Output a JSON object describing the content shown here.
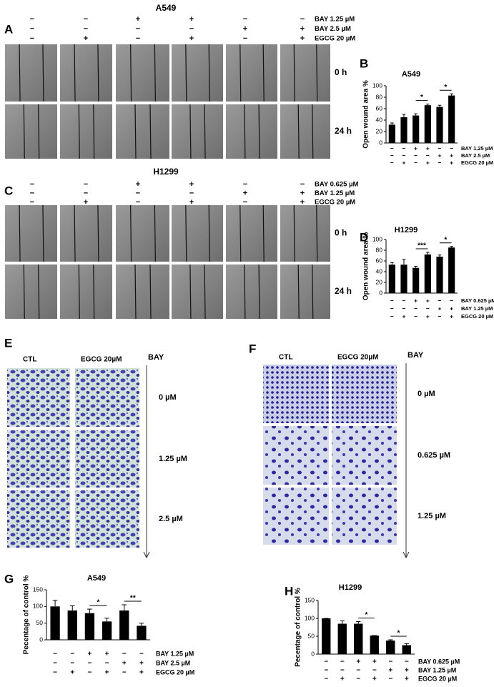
{
  "panels": {
    "wound_a549": {
      "label": "A",
      "title": "A549",
      "times": [
        "0 h",
        "24 h"
      ],
      "conditions": [
        {
          "name": "BAY 1.25 µM",
          "signs": [
            "−",
            "−",
            "+",
            "+",
            "−",
            "−"
          ]
        },
        {
          "name": "BAY 2.5 µM",
          "signs": [
            "−",
            "−",
            "−",
            "−",
            "+",
            "+"
          ]
        },
        {
          "name": "EGCG 20 µM",
          "signs": [
            "−",
            "+",
            "−",
            "+",
            "−",
            "+"
          ]
        }
      ]
    },
    "wound_h1299": {
      "label": "C",
      "title": "H1299",
      "times": [
        "0 h",
        "24 h"
      ],
      "conditions": [
        {
          "name": "BAY 0.625 µM",
          "signs": [
            "−",
            "−",
            "+",
            "+",
            "−",
            "−"
          ]
        },
        {
          "name": "BAY 1.25 µM",
          "signs": [
            "−",
            "−",
            "−",
            "−",
            "+",
            "+"
          ]
        },
        {
          "name": "EGCG 20 µM",
          "signs": [
            "−",
            "+",
            "−",
            "+",
            "−",
            "+"
          ]
        }
      ]
    },
    "transwell_a549": {
      "label": "E",
      "columns": [
        "CTL",
        "EGCG 20µM"
      ],
      "axis_label": "BAY",
      "doses": [
        "0 µM",
        "1.25 µM",
        "2.5 µM"
      ]
    },
    "transwell_h1299": {
      "label": "F",
      "columns": [
        "CTL",
        "EGCG 20µM"
      ],
      "axis_label": "BAY",
      "doses": [
        "0 µM",
        "0.625 µM",
        "1.25 µM"
      ]
    }
  },
  "chart_data": [
    {
      "type": "bar",
      "label": "B",
      "title": "A549",
      "y_label": "Open wound area %",
      "color": "#000000",
      "values": [
        32,
        45,
        48,
        66,
        63,
        83
      ],
      "errors": [
        3,
        5,
        3,
        2,
        3,
        3
      ],
      "significance": [
        null,
        null,
        null,
        "*",
        null,
        "*"
      ],
      "ylim": [
        0,
        100
      ],
      "yticks": [
        0,
        20,
        40,
        60,
        80,
        100
      ],
      "conditions": [
        {
          "name": "BAY 1.25 µM",
          "signs": [
            "−",
            "−",
            "+",
            "+",
            "−",
            "−"
          ]
        },
        {
          "name": "BAY  2.5 µM",
          "signs": [
            "−",
            "−",
            "−",
            "−",
            "+",
            "+"
          ]
        },
        {
          "name": "EGCG 20 µM",
          "signs": [
            "−",
            "+",
            "−",
            "+",
            "−",
            "+"
          ]
        }
      ]
    },
    {
      "type": "bar",
      "label": "D",
      "title": "H1299",
      "y_label": "Open wound area %",
      "color": "#000000",
      "values": [
        53,
        53,
        47,
        72,
        68,
        85
      ],
      "errors": [
        4,
        10,
        3,
        4,
        3,
        2
      ],
      "significance": [
        null,
        null,
        null,
        "***",
        null,
        "*"
      ],
      "ylim": [
        0,
        100
      ],
      "yticks": [
        0,
        20,
        40,
        60,
        80,
        100
      ],
      "conditions": [
        {
          "name": "BAY 0.625 µM",
          "signs": [
            "−",
            "−",
            "+",
            "+",
            "−",
            "−"
          ]
        },
        {
          "name": "BAY 1.25 µM",
          "signs": [
            "−",
            "−",
            "−",
            "−",
            "+",
            "+"
          ]
        },
        {
          "name": "EGCG 20 µM",
          "signs": [
            "−",
            "+",
            "−",
            "+",
            "−",
            "+"
          ]
        }
      ]
    },
    {
      "type": "bar",
      "label": "G",
      "title": "A549",
      "y_label": "Pecentage of control %",
      "color": "#000000",
      "values": [
        100,
        88,
        80,
        55,
        88,
        42
      ],
      "errors": [
        18,
        14,
        12,
        10,
        17,
        8
      ],
      "significance": [
        null,
        null,
        null,
        "*",
        null,
        "**"
      ],
      "ylim": [
        0,
        150
      ],
      "yticks": [
        0,
        50,
        100,
        150
      ],
      "conditions": [
        {
          "name": "BAY 1.25 µM",
          "signs": [
            "−",
            "−",
            "+",
            "+",
            "−",
            "−"
          ]
        },
        {
          "name": "BAY 2.5 µM",
          "signs": [
            "−",
            "−",
            "−",
            "−",
            "+",
            "+"
          ]
        },
        {
          "name": "EGCG 20 µM",
          "signs": [
            "−",
            "+",
            "−",
            "+",
            "−",
            "+"
          ]
        }
      ]
    },
    {
      "type": "bar",
      "label": "H",
      "title": "H1299",
      "y_label": "Pecentage of control %",
      "color": "#000000",
      "values": [
        100,
        85,
        85,
        52,
        38,
        25
      ],
      "errors": [
        0,
        8,
        6,
        0,
        2,
        4
      ],
      "significance": [
        null,
        null,
        null,
        "*",
        null,
        "*"
      ],
      "ylim": [
        0,
        150
      ],
      "yticks": [
        0,
        50,
        100,
        150
      ],
      "conditions": [
        {
          "name": "BAY 0.625 µM",
          "signs": [
            "−",
            "−",
            "+",
            "+",
            "−",
            "−"
          ]
        },
        {
          "name": "BAY 1.25 µM",
          "signs": [
            "−",
            "−",
            "−",
            "−",
            "+",
            "+"
          ]
        },
        {
          "name": "EGCG 20 µM",
          "signs": [
            "−",
            "+",
            "−",
            "+",
            "−",
            "+"
          ]
        }
      ]
    }
  ]
}
